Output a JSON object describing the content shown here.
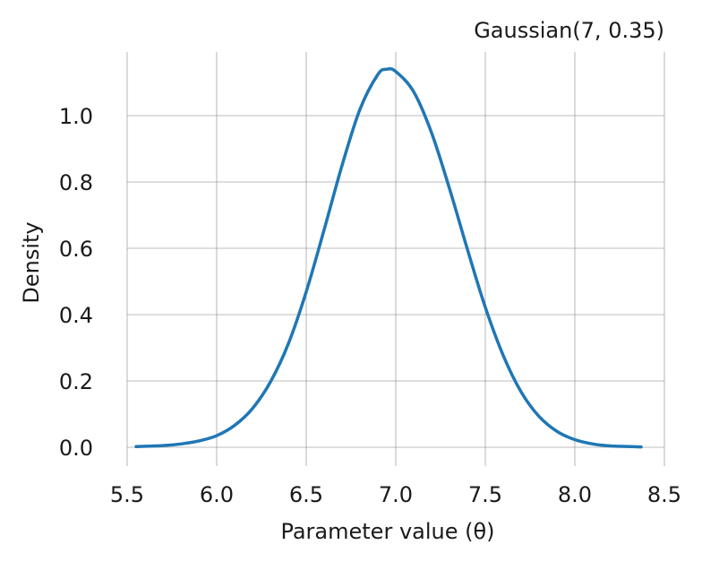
{
  "chart_data": {
    "type": "line",
    "title": "Gaussian(7, 0.35)",
    "xlabel": "Parameter value (θ)",
    "ylabel": "Density",
    "xlim": [
      5.45,
      8.5
    ],
    "ylim": [
      -0.05,
      1.19
    ],
    "x_ticks": [
      5.5,
      6.0,
      6.5,
      7.0,
      7.5,
      8.0,
      8.5
    ],
    "x_tick_labels": [
      "5.5",
      "6.0",
      "6.5",
      "7.0",
      "7.5",
      "8.0",
      "8.5"
    ],
    "y_ticks": [
      0.0,
      0.2,
      0.4,
      0.6,
      0.8,
      1.0
    ],
    "y_tick_labels": [
      "0.0",
      "0.2",
      "0.4",
      "0.6",
      "0.8",
      "1.0"
    ],
    "grid": true,
    "line_color": "#1f77b4",
    "grid_color": "#7f7f7f",
    "series": [
      {
        "x": [
          5.55,
          5.7,
          5.8,
          5.9,
          6.0,
          6.1,
          6.2,
          6.3,
          6.4,
          6.5,
          6.6,
          6.7,
          6.8,
          6.9,
          6.95,
          7.0,
          7.1,
          7.2,
          7.3,
          7.4,
          7.5,
          7.6,
          7.7,
          7.8,
          7.9,
          8.0,
          8.1,
          8.2,
          8.37
        ],
        "y": [
          0.002,
          0.005,
          0.01,
          0.019,
          0.035,
          0.066,
          0.117,
          0.197,
          0.312,
          0.469,
          0.656,
          0.85,
          1.019,
          1.124,
          1.14,
          1.133,
          1.072,
          0.948,
          0.78,
          0.597,
          0.422,
          0.277,
          0.167,
          0.093,
          0.048,
          0.023,
          0.01,
          0.004,
          0.001
        ]
      }
    ]
  }
}
